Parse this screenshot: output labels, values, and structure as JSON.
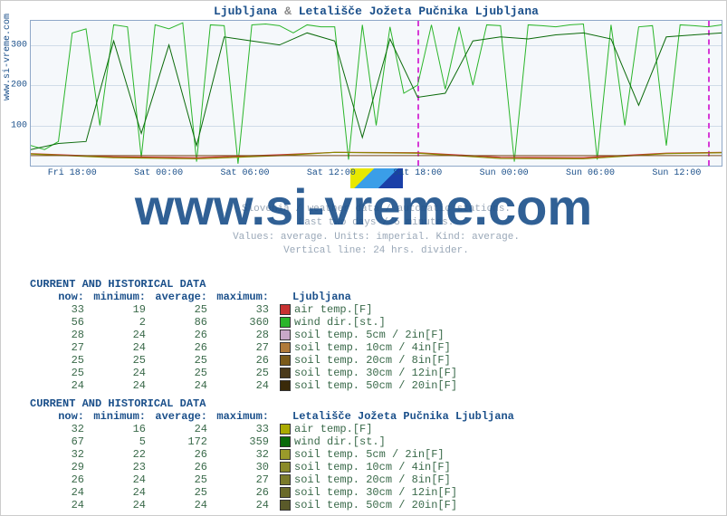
{
  "title_parts": [
    "Ljubljana",
    "&",
    "Letališče Jožeta Pučnika Ljubljana"
  ],
  "watermark": "www.si-vreme.com",
  "sidebar_url": "www.si-vreme.com",
  "caption_lines": [
    "Slovenia / weather data / automatic stations.",
    "Last two days / 5 minutes.",
    "Values: average. Units: imperial. Kind: average.",
    "Vertical line: 24 hrs. divider."
  ],
  "chart": {
    "type": "line",
    "background_color": "#f5f8fb",
    "border_color": "#8fa8c8",
    "grid_color": "#d0dce8",
    "divider_color": "#d63ad6",
    "ylim": [
      0,
      360
    ],
    "yticks": [
      100,
      200,
      300
    ],
    "xlabels": [
      "Fri 18:00",
      "Sat 00:00",
      "Sat 06:00",
      "Sat 12:00",
      "Sat 18:00",
      "Sun 00:00",
      "Sun 06:00",
      "Sun 12:00"
    ],
    "xpositions_pct": [
      6,
      18.5,
      31,
      43.5,
      56,
      68.5,
      81,
      93.5
    ],
    "day_dividers_pct": [
      56,
      98
    ],
    "series": [
      {
        "name": "wind_dir_a",
        "color": "#2ab52a",
        "width": 1,
        "points": [
          [
            0,
            50
          ],
          [
            2,
            40
          ],
          [
            4,
            60
          ],
          [
            6,
            330
          ],
          [
            8,
            340
          ],
          [
            10,
            100
          ],
          [
            12,
            350
          ],
          [
            14,
            345
          ],
          [
            16,
            20
          ],
          [
            18,
            350
          ],
          [
            20,
            340
          ],
          [
            22,
            355
          ],
          [
            24,
            10
          ],
          [
            26,
            350
          ],
          [
            28,
            348
          ],
          [
            30,
            5
          ],
          [
            32,
            350
          ],
          [
            34,
            352
          ],
          [
            36,
            348
          ],
          [
            38,
            330
          ],
          [
            40,
            350
          ],
          [
            42,
            345
          ],
          [
            44,
            345
          ],
          [
            46,
            15
          ],
          [
            48,
            350
          ],
          [
            50,
            100
          ],
          [
            52,
            345
          ],
          [
            54,
            180
          ],
          [
            56,
            200
          ],
          [
            58,
            350
          ],
          [
            60,
            190
          ],
          [
            62,
            345
          ],
          [
            64,
            200
          ],
          [
            66,
            350
          ],
          [
            68,
            348
          ],
          [
            70,
            10
          ],
          [
            72,
            350
          ],
          [
            74,
            348
          ],
          [
            76,
            345
          ],
          [
            78,
            350
          ],
          [
            80,
            352
          ],
          [
            82,
            15
          ],
          [
            84,
            350
          ],
          [
            86,
            100
          ],
          [
            88,
            345
          ],
          [
            90,
            348
          ],
          [
            92,
            50
          ],
          [
            94,
            350
          ],
          [
            96,
            348
          ],
          [
            98,
            345
          ],
          [
            100,
            350
          ]
        ]
      },
      {
        "name": "wind_dir_b",
        "color": "#0a6a0a",
        "width": 1,
        "points": [
          [
            0,
            40
          ],
          [
            4,
            55
          ],
          [
            8,
            60
          ],
          [
            12,
            310
          ],
          [
            16,
            80
          ],
          [
            20,
            300
          ],
          [
            24,
            50
          ],
          [
            28,
            320
          ],
          [
            32,
            310
          ],
          [
            36,
            300
          ],
          [
            40,
            330
          ],
          [
            44,
            310
          ],
          [
            48,
            70
          ],
          [
            52,
            315
          ],
          [
            56,
            170
          ],
          [
            60,
            180
          ],
          [
            64,
            310
          ],
          [
            68,
            320
          ],
          [
            72,
            315
          ],
          [
            76,
            325
          ],
          [
            80,
            330
          ],
          [
            84,
            315
          ],
          [
            88,
            150
          ],
          [
            92,
            320
          ],
          [
            96,
            325
          ],
          [
            100,
            330
          ]
        ]
      },
      {
        "name": "air_temp_a",
        "color": "#c83232",
        "width": 1.2,
        "points": [
          [
            0,
            30
          ],
          [
            12,
            22
          ],
          [
            24,
            20
          ],
          [
            36,
            27
          ],
          [
            44,
            33
          ],
          [
            56,
            32
          ],
          [
            68,
            21
          ],
          [
            80,
            20
          ],
          [
            92,
            31
          ],
          [
            100,
            33
          ]
        ]
      },
      {
        "name": "air_temp_b",
        "color": "#8a8a00",
        "width": 1.2,
        "points": [
          [
            0,
            29
          ],
          [
            12,
            20
          ],
          [
            24,
            17
          ],
          [
            36,
            25
          ],
          [
            44,
            33
          ],
          [
            56,
            31
          ],
          [
            68,
            18
          ],
          [
            80,
            17
          ],
          [
            92,
            30
          ],
          [
            100,
            32
          ]
        ]
      },
      {
        "name": "soil_group",
        "color": "#7a4a1a",
        "width": 1,
        "points": [
          [
            0,
            25
          ],
          [
            100,
            25
          ]
        ]
      }
    ]
  },
  "tables": [
    {
      "title": "CURRENT AND HISTORICAL DATA",
      "location": "Ljubljana",
      "headers": [
        "now:",
        "minimum:",
        "average:",
        "maximum:"
      ],
      "rows": [
        {
          "now": 33,
          "min": 19,
          "avg": 25,
          "max": 33,
          "swatch": "#c83232",
          "label": "air temp.[F]"
        },
        {
          "now": 56,
          "min": 2,
          "avg": 86,
          "max": 360,
          "swatch": "#2ab52a",
          "label": "wind dir.[st.]"
        },
        {
          "now": 28,
          "min": 24,
          "avg": 26,
          "max": 28,
          "swatch": "#c8a8c8",
          "label": "soil temp. 5cm / 2in[F]"
        },
        {
          "now": 27,
          "min": 24,
          "avg": 26,
          "max": 27,
          "swatch": "#b07a3a",
          "label": "soil temp. 10cm / 4in[F]"
        },
        {
          "now": 25,
          "min": 25,
          "avg": 25,
          "max": 26,
          "swatch": "#7a5a1a",
          "label": "soil temp. 20cm / 8in[F]"
        },
        {
          "now": 25,
          "min": 24,
          "avg": 25,
          "max": 25,
          "swatch": "#4a3a1a",
          "label": "soil temp. 30cm / 12in[F]"
        },
        {
          "now": 24,
          "min": 24,
          "avg": 24,
          "max": 24,
          "swatch": "#3a2a0a",
          "label": "soil temp. 50cm / 20in[F]"
        }
      ]
    },
    {
      "title": "CURRENT AND HISTORICAL DATA",
      "location": "Letališče Jožeta Pučnika Ljubljana",
      "headers": [
        "now:",
        "minimum:",
        "average:",
        "maximum:"
      ],
      "rows": [
        {
          "now": 32,
          "min": 16,
          "avg": 24,
          "max": 33,
          "swatch": "#aaaa00",
          "label": "air temp.[F]"
        },
        {
          "now": 67,
          "min": 5,
          "avg": 172,
          "max": 359,
          "swatch": "#0a6a0a",
          "label": "wind dir.[st.]"
        },
        {
          "now": 32,
          "min": 22,
          "avg": 26,
          "max": 32,
          "swatch": "#9a9a2a",
          "label": "soil temp. 5cm / 2in[F]"
        },
        {
          "now": 29,
          "min": 23,
          "avg": 26,
          "max": 30,
          "swatch": "#8a8a2a",
          "label": "soil temp. 10cm / 4in[F]"
        },
        {
          "now": 26,
          "min": 24,
          "avg": 25,
          "max": 27,
          "swatch": "#7a7a2a",
          "label": "soil temp. 20cm / 8in[F]"
        },
        {
          "now": 24,
          "min": 24,
          "avg": 25,
          "max": 26,
          "swatch": "#6a6a2a",
          "label": "soil temp. 30cm / 12in[F]"
        },
        {
          "now": 24,
          "min": 24,
          "avg": 24,
          "max": 24,
          "swatch": "#5a5a2a",
          "label": "soil temp. 50cm / 20in[F]"
        }
      ]
    }
  ]
}
